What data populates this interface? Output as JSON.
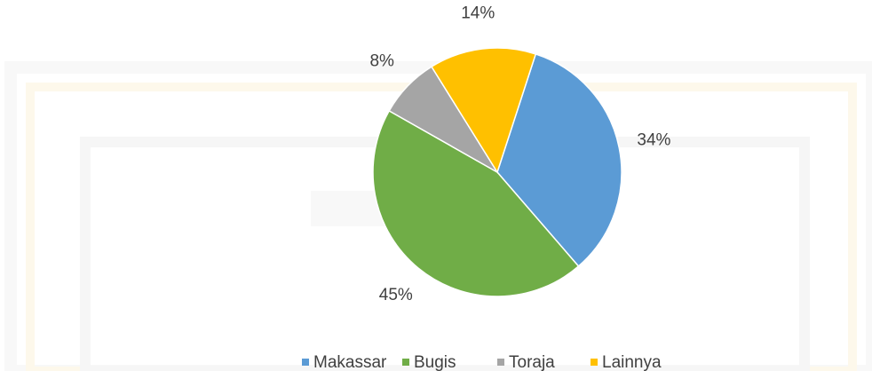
{
  "chart_data": {
    "type": "pie",
    "categories": [
      "Makassar",
      "Bugis",
      "Toraja",
      "Lainnya"
    ],
    "values": [
      34,
      45,
      8,
      14
    ],
    "value_labels": [
      "34%",
      "45%",
      "8%",
      "14%"
    ],
    "colors": [
      "#5b9bd5",
      "#70ad47",
      "#a5a5a5",
      "#ffc000"
    ],
    "legend": "bottom"
  }
}
